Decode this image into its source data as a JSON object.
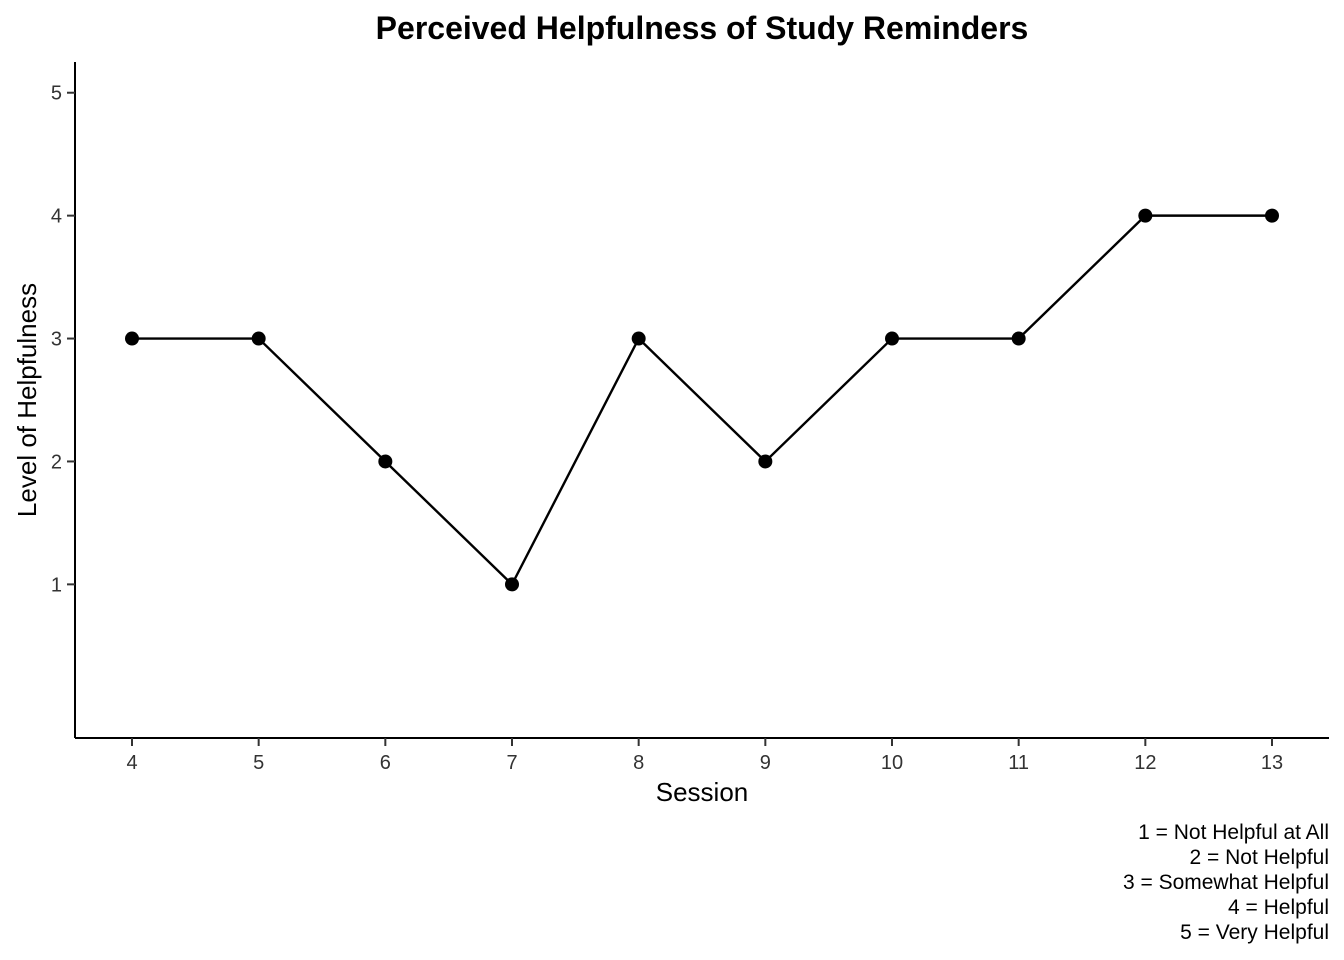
{
  "chart_data": {
    "type": "line",
    "title": "Perceived Helpfulness of Study Reminders",
    "xlabel": "Session",
    "ylabel": "Level of Helpfulness",
    "x": [
      4,
      5,
      6,
      7,
      8,
      9,
      10,
      11,
      12,
      13
    ],
    "series": [
      {
        "values": [
          3,
          3,
          2,
          1,
          3,
          2,
          3,
          3,
          4,
          4
        ]
      }
    ],
    "x_ticks": [
      "4",
      "5",
      "6",
      "7",
      "8",
      "9",
      "10",
      "11",
      "12",
      "13"
    ],
    "y_ticks": [
      "1",
      "2",
      "3",
      "4",
      "5"
    ],
    "xlim": [
      3.55,
      13.45
    ],
    "ylim": [
      -0.25,
      5.25
    ],
    "grid": false,
    "line_color": "#000000",
    "point_color": "#000000",
    "caption_lines": [
      "1 = Not Helpful at All",
      "2 = Not Helpful",
      "3 = Somewhat Helpful",
      "4 = Helpful",
      "5 = Very Helpful"
    ]
  }
}
